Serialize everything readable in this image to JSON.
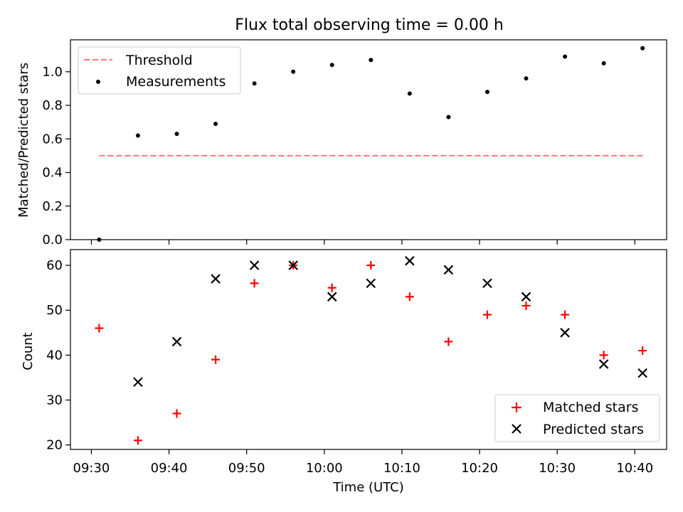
{
  "title": "Flux total observing time = 0.00 h",
  "xlabel": "Time (UTC)",
  "x_ticks": [
    "09:30",
    "09:40",
    "09:50",
    "10:00",
    "10:10",
    "10:20",
    "10:30",
    "10:40"
  ],
  "colors": {
    "threshold": "#ff7f7f",
    "measurements": "#000000",
    "matched": "#ff0000",
    "predicted": "#000000"
  },
  "chart_data": [
    {
      "type": "scatter",
      "ylabel": "Matched/Predicted stars",
      "ylim": [
        0,
        1.19
      ],
      "y_ticks": [
        "0.0",
        "0.2",
        "0.4",
        "0.6",
        "0.8",
        "1.0"
      ],
      "legend_position": "top-left",
      "x": [
        "09:31",
        "09:36",
        "09:41",
        "09:46",
        "09:51",
        "09:56",
        "10:01",
        "10:06",
        "10:11",
        "10:16",
        "10:21",
        "10:26",
        "10:31",
        "10:36",
        "10:41"
      ],
      "series": [
        {
          "name": "Threshold",
          "style": "dashed-line",
          "values": [
            0.5,
            0.5
          ]
        },
        {
          "name": "Measurements",
          "style": "dot",
          "values": [
            0.0,
            0.62,
            0.63,
            0.69,
            0.93,
            1.0,
            1.04,
            1.07,
            0.87,
            0.73,
            0.88,
            0.96,
            1.09,
            1.05,
            1.14
          ]
        }
      ]
    },
    {
      "type": "scatter",
      "ylabel": "Count",
      "ylim": [
        19,
        63.5
      ],
      "y_ticks": [
        "20",
        "30",
        "40",
        "50",
        "60"
      ],
      "legend_position": "bottom-right",
      "x": [
        "09:31",
        "09:36",
        "09:41",
        "09:46",
        "09:51",
        "09:56",
        "10:01",
        "10:06",
        "10:11",
        "10:16",
        "10:21",
        "10:26",
        "10:31",
        "10:36",
        "10:41"
      ],
      "series": [
        {
          "name": "Matched stars",
          "marker": "plus",
          "values": [
            46,
            21,
            27,
            39,
            56,
            60,
            55,
            60,
            53,
            43,
            49,
            51,
            49,
            40,
            41
          ]
        },
        {
          "name": "Predicted stars",
          "marker": "x",
          "values": [
            null,
            34,
            43,
            57,
            60,
            60,
            53,
            56,
            61,
            59,
            56,
            53,
            45,
            38,
            36
          ]
        }
      ]
    }
  ]
}
